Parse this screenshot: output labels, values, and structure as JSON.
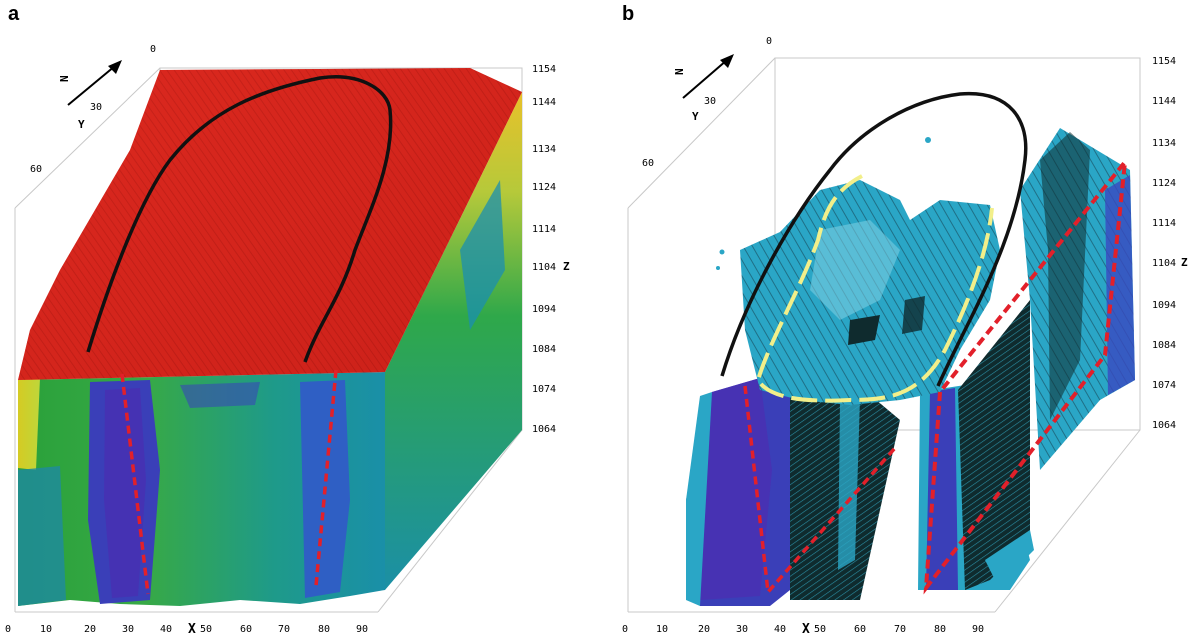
{
  "panels": [
    {
      "label": "a",
      "north": "N",
      "x_axis": {
        "name": "X",
        "ticks": [
          "0",
          "10",
          "20",
          "30",
          "40",
          "50",
          "60",
          "70",
          "80",
          "90"
        ]
      },
      "y_axis": {
        "name": "Y",
        "ticks": [
          "0",
          "30",
          "60"
        ]
      },
      "z_axis": {
        "name": "Z",
        "ticks": [
          "1154",
          "1144",
          "1134",
          "1124",
          "1114",
          "1104",
          "1094",
          "1084",
          "1074",
          "1064"
        ]
      }
    },
    {
      "label": "b",
      "north": "N",
      "x_axis": {
        "name": "X",
        "ticks": [
          "0",
          "10",
          "20",
          "30",
          "40",
          "50",
          "60",
          "70",
          "80",
          "90"
        ]
      },
      "y_axis": {
        "name": "Y",
        "ticks": [
          "0",
          "30",
          "60"
        ]
      },
      "z_axis": {
        "name": "Z",
        "ticks": [
          "1154",
          "1144",
          "1134",
          "1124",
          "1114",
          "1104",
          "1094",
          "1094",
          "1084",
          "1074",
          "1064"
        ]
      }
    }
  ],
  "colors": {
    "surface_red": "#d8261c",
    "high_resistivity_green": "#22a33a",
    "low_resistivity_blue": "#3a3fb8",
    "cyan_isosurface": "#29a9c9",
    "outline_black": "#111111",
    "fault_red_dashed": "#e2202a",
    "boundary_yellow_dashed": "#f2ef8a"
  }
}
